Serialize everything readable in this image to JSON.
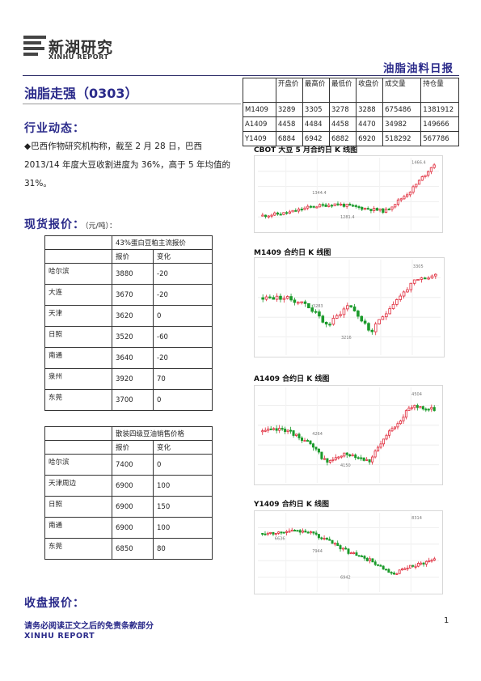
{
  "header": {
    "logo_cn": "新湖研究",
    "logo_en": "XINHU REPORT",
    "report_type": "油脂油料日报"
  },
  "title": "油脂走强（0303）",
  "industry": {
    "heading": "行业动态：",
    "text": "◆巴西作物研究机构称，截至 2 月 28 日，巴西 2013/14 年度大豆收割进度为 36%，高于 5 年均值的 31%。"
  },
  "spot": {
    "heading": "现货报价：",
    "unit": "（元/吨）：",
    "table1": {
      "caption": "43%蛋白豆粕主流报价",
      "col_price": "报价",
      "col_change": "变化",
      "rows": [
        {
          "city": "哈尔滨",
          "price": "3880",
          "change": "-20"
        },
        {
          "city": "大连",
          "price": "3670",
          "change": "-20"
        },
        {
          "city": "天津",
          "price": "3620",
          "change": "0"
        },
        {
          "city": "日照",
          "price": "3520",
          "change": "-60"
        },
        {
          "city": "南通",
          "price": "3640",
          "change": "-20"
        },
        {
          "city": "泉州",
          "price": "3920",
          "change": "70"
        },
        {
          "city": "东莞",
          "price": "3700",
          "change": "0"
        }
      ]
    },
    "table2": {
      "caption": "散装四级豆油销售价格",
      "col_price": "报价",
      "col_change": "变化",
      "rows": [
        {
          "city": "哈尔滨",
          "price": "7400",
          "change": "0"
        },
        {
          "city": "天津周边",
          "price": "6900",
          "change": "100"
        },
        {
          "city": "日照",
          "price": "6900",
          "change": "150"
        },
        {
          "city": "南通",
          "price": "6900",
          "change": "100"
        },
        {
          "city": "东莞",
          "price": "6850",
          "change": "80"
        }
      ]
    }
  },
  "closing": {
    "heading": "收盘报价："
  },
  "quotes": {
    "headers": [
      "",
      "开盘价",
      "最高价",
      "最低价",
      "收盘价",
      "成交量",
      "持仓量"
    ],
    "rows": [
      [
        "M1409",
        "3289",
        "3305",
        "3278",
        "3288",
        "675486",
        "1381912"
      ],
      [
        "A1409",
        "4458",
        "4484",
        "4458",
        "4470",
        "34982",
        "149666"
      ],
      [
        "Y1409",
        "6884",
        "6942",
        "6882",
        "6920",
        "518292",
        "567786"
      ]
    ]
  },
  "charts": [
    {
      "title": "CBOT 大豆 5 月合约日 K 线图",
      "labels": [
        "1466.4",
        "1344.4",
        "1281.4"
      ]
    },
    {
      "title": "M1409 合约日 K 线图",
      "labels": [
        "3305",
        "3283",
        "3216"
      ]
    },
    {
      "title": "A1409 合约日 K 线图",
      "labels": [
        "4504",
        "4264",
        "4150"
      ]
    },
    {
      "title": "Y1409 合约日 K 线图",
      "labels": [
        "8314",
        "7944",
        "6942",
        "6636"
      ]
    }
  ],
  "footer": {
    "disclaimer": "请务必阅读正文之后的免责条款部分",
    "brand": "XINHU REPORT",
    "page": "1"
  },
  "colors": {
    "accent": "#2a2a8a",
    "up": "#e0293a",
    "down": "#1a9a2a"
  }
}
